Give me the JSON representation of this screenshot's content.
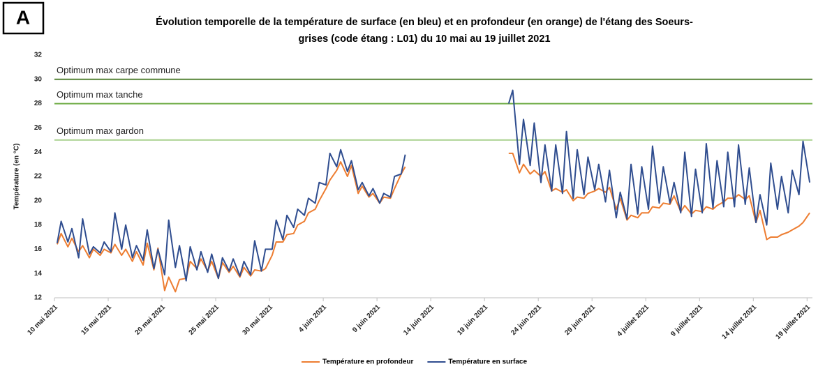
{
  "chart_data": {
    "type": "line",
    "panel_label": "A",
    "title": [
      "Évolution temporelle de la température de surface (en bleu) et en profondeur (en orange) de l'étang des Soeurs-",
      "grises (code étang : L01) du 10 mai au 19 juillet 2021"
    ],
    "y_label": "Température (en °C)",
    "ylim": [
      12,
      32
    ],
    "yticks": [
      12,
      14,
      16,
      18,
      20,
      22,
      24,
      26,
      28,
      30,
      32
    ],
    "xlim": [
      "2021-05-10",
      "2021-07-19 12:00"
    ],
    "xticks": [
      {
        "value": "2021-05-10",
        "label": "10 mai 2021"
      },
      {
        "value": "2021-05-15",
        "label": "15 mai 2021"
      },
      {
        "value": "2021-05-20",
        "label": "20 mai 2021"
      },
      {
        "value": "2021-05-25",
        "label": "25 mai 2021"
      },
      {
        "value": "2021-05-30",
        "label": "30 mai 2021"
      },
      {
        "value": "2021-06-04",
        "label": "4 juin 2021"
      },
      {
        "value": "2021-06-09",
        "label": "9 juin 2021"
      },
      {
        "value": "2021-06-14",
        "label": "14 juin 2021"
      },
      {
        "value": "2021-06-19",
        "label": "19 juin 2021"
      },
      {
        "value": "2021-06-24",
        "label": "24 juin 2021"
      },
      {
        "value": "2021-06-29",
        "label": "29 juin 2021"
      },
      {
        "value": "2021-07-04",
        "label": "4 juillet 2021"
      },
      {
        "value": "2021-07-09",
        "label": "9 juillet 2021"
      },
      {
        "value": "2021-07-14",
        "label": "14 juillet 2021"
      },
      {
        "value": "2021-07-19",
        "label": "19 juillet 2021"
      }
    ],
    "grid": false,
    "legend": "bottom",
    "reference_lines": [
      {
        "label": "Optimum max carpe commune",
        "value": 30,
        "color": "#548235"
      },
      {
        "label": "Optimum max tanche",
        "value": 28,
        "color": "#70ad47"
      },
      {
        "label": "Optimum max gardon",
        "value": 25,
        "color": "#a9d18e"
      }
    ],
    "x": [
      "2021-05-10 06:00",
      "2021-05-10 15:00",
      "2021-05-11 06:00",
      "2021-05-11 15:00",
      "2021-05-12 06:00",
      "2021-05-12 15:00",
      "2021-05-13 06:00",
      "2021-05-13 15:00",
      "2021-05-14 06:00",
      "2021-05-14 15:00",
      "2021-05-15 06:00",
      "2021-05-15 15:00",
      "2021-05-16 06:00",
      "2021-05-16 15:00",
      "2021-05-17 06:00",
      "2021-05-17 15:00",
      "2021-05-18 06:00",
      "2021-05-18 15:00",
      "2021-05-19 06:00",
      "2021-05-19 15:00",
      "2021-05-20 06:00",
      "2021-05-20 15:00",
      "2021-05-21 06:00",
      "2021-05-21 15:00",
      "2021-05-22 06:00",
      "2021-05-22 15:00",
      "2021-05-23 06:00",
      "2021-05-23 15:00",
      "2021-05-24 06:00",
      "2021-05-24 15:00",
      "2021-05-25 06:00",
      "2021-05-25 15:00",
      "2021-05-26 06:00",
      "2021-05-26 15:00",
      "2021-05-27 06:00",
      "2021-05-27 15:00",
      "2021-05-28 06:00",
      "2021-05-28 15:00",
      "2021-05-29 06:00",
      "2021-05-29 15:00",
      "2021-05-30 06:00",
      "2021-05-30 15:00",
      "2021-05-31 06:00",
      "2021-05-31 15:00",
      "2021-06-01 06:00",
      "2021-06-01 15:00",
      "2021-06-02 06:00",
      "2021-06-02 15:00",
      "2021-06-03 06:00",
      "2021-06-03 15:00",
      "2021-06-04 06:00",
      "2021-06-04 15:00",
      "2021-06-05 06:00",
      "2021-06-05 15:00",
      "2021-06-06 06:00",
      "2021-06-06 15:00",
      "2021-06-07 06:00",
      "2021-06-07 15:00",
      "2021-06-08 06:00",
      "2021-06-08 15:00",
      "2021-06-09 06:00",
      "2021-06-09 15:00",
      "2021-06-10 06:00",
      "2021-06-10 15:00",
      "2021-06-11 06:00",
      "2021-06-11 15:00",
      "2021-06-16 12:00",
      "2021-06-21 06:00",
      "2021-06-21 15:00",
      "2021-06-22 06:00",
      "2021-06-22 15:00",
      "2021-06-23 06:00",
      "2021-06-23 15:00",
      "2021-06-24 06:00",
      "2021-06-24 15:00",
      "2021-06-25 06:00",
      "2021-06-25 15:00",
      "2021-06-26 06:00",
      "2021-06-26 15:00",
      "2021-06-27 06:00",
      "2021-06-27 15:00",
      "2021-06-28 06:00",
      "2021-06-28 15:00",
      "2021-06-29 06:00",
      "2021-06-29 15:00",
      "2021-06-30 06:00",
      "2021-06-30 15:00",
      "2021-07-01 06:00",
      "2021-07-01 15:00",
      "2021-07-02 06:00",
      "2021-07-02 15:00",
      "2021-07-03 06:00",
      "2021-07-03 15:00",
      "2021-07-04 06:00",
      "2021-07-04 15:00",
      "2021-07-05 06:00",
      "2021-07-05 15:00",
      "2021-07-06 06:00",
      "2021-07-06 15:00",
      "2021-07-07 06:00",
      "2021-07-07 15:00",
      "2021-07-08 06:00",
      "2021-07-08 15:00",
      "2021-07-09 06:00",
      "2021-07-09 15:00",
      "2021-07-10 06:00",
      "2021-07-10 15:00",
      "2021-07-11 06:00",
      "2021-07-11 15:00",
      "2021-07-12 06:00",
      "2021-07-12 15:00",
      "2021-07-13 06:00",
      "2021-07-13 15:00",
      "2021-07-14 06:00",
      "2021-07-14 15:00",
      "2021-07-15 06:00",
      "2021-07-15 15:00",
      "2021-07-16 06:00",
      "2021-07-16 15:00",
      "2021-07-17 06:00",
      "2021-07-17 15:00",
      "2021-07-18 06:00",
      "2021-07-18 15:00",
      "2021-07-19 06:00"
    ],
    "series": [
      {
        "name": "Température en profondeur",
        "color": "#ed7d31",
        "values": [
          16.4,
          17.3,
          16.2,
          16.9,
          15.8,
          16.3,
          15.3,
          16.0,
          15.5,
          16.0,
          15.7,
          16.4,
          15.5,
          16.0,
          15.0,
          15.8,
          14.7,
          16.5,
          14.3,
          16.1,
          12.6,
          13.7,
          12.5,
          13.5,
          13.6,
          15.0,
          14.4,
          15.2,
          14.2,
          15.0,
          13.6,
          14.9,
          14.1,
          14.6,
          13.7,
          14.5,
          13.8,
          14.3,
          14.2,
          14.4,
          15.5,
          16.6,
          16.6,
          17.2,
          17.3,
          18.0,
          18.3,
          19.0,
          19.3,
          20.0,
          21.0,
          21.7,
          22.5,
          23.2,
          22.0,
          22.9,
          20.6,
          21.2,
          20.3,
          20.6,
          19.8,
          20.3,
          20.2,
          21.0,
          22.2,
          22.8,
          null,
          23.9,
          23.9,
          22.3,
          23.0,
          22.2,
          22.5,
          22.0,
          22.4,
          20.8,
          21.0,
          20.7,
          20.9,
          20.0,
          20.3,
          20.2,
          20.6,
          20.8,
          21.0,
          20.7,
          21.1,
          19.3,
          20.2,
          18.4,
          18.8,
          18.6,
          19.0,
          19.0,
          19.5,
          19.4,
          19.8,
          19.7,
          20.4,
          19.1,
          19.6,
          18.9,
          19.2,
          19.1,
          19.5,
          19.3,
          19.6,
          19.9,
          20.2,
          20.2,
          20.5,
          20.1,
          20.4,
          18.2,
          19.2,
          16.8,
          17.0,
          17.0,
          17.2,
          17.4,
          17.6,
          17.9,
          18.2,
          19.0
        ]
      },
      {
        "name": "Température en surface",
        "color": "#2f4d8f",
        "values": [
          16.5,
          18.3,
          16.6,
          17.7,
          15.3,
          18.5,
          15.6,
          16.2,
          15.7,
          16.6,
          15.8,
          19.0,
          16.0,
          18.0,
          15.3,
          16.3,
          15.1,
          17.6,
          14.4,
          16.0,
          13.9,
          18.4,
          14.5,
          16.3,
          13.4,
          16.2,
          14.3,
          15.8,
          14.1,
          15.6,
          13.6,
          15.3,
          14.2,
          15.2,
          13.8,
          15.0,
          13.9,
          16.7,
          14.2,
          16.0,
          16.0,
          18.4,
          16.8,
          18.8,
          17.8,
          19.3,
          18.8,
          20.2,
          19.8,
          21.5,
          21.3,
          23.9,
          22.8,
          24.2,
          22.4,
          23.3,
          20.9,
          21.5,
          20.4,
          21.0,
          19.8,
          20.6,
          20.3,
          22.0,
          22.2,
          23.8,
          null,
          28.0,
          29.1,
          23.0,
          26.7,
          22.9,
          26.4,
          21.5,
          24.6,
          20.8,
          24.6,
          20.6,
          25.7,
          20.2,
          24.2,
          20.5,
          23.6,
          20.9,
          23.0,
          19.9,
          22.5,
          18.6,
          20.7,
          18.5,
          23.0,
          18.9,
          22.8,
          19.3,
          24.5,
          19.8,
          22.8,
          19.8,
          21.5,
          19.0,
          24.0,
          18.7,
          22.6,
          19.0,
          24.7,
          19.4,
          23.3,
          19.5,
          24.0,
          19.5,
          24.6,
          19.7,
          22.7,
          18.2,
          20.5,
          18.0,
          23.1,
          19.3,
          22.0,
          19.0,
          22.5,
          20.5,
          24.9,
          21.5
        ]
      }
    ]
  }
}
